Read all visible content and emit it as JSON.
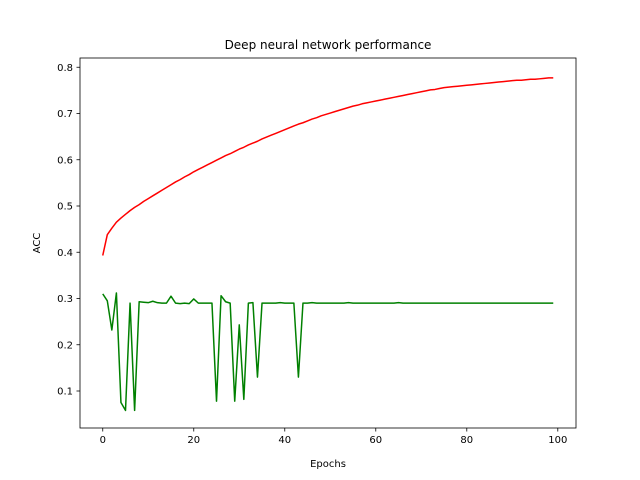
{
  "chart_data": {
    "type": "line",
    "title": "Deep neural network performance",
    "xlabel": "Epochs",
    "ylabel": "ACC",
    "xlim": [
      -5,
      104
    ],
    "ylim": [
      0.02,
      0.82
    ],
    "xticks": [
      0,
      20,
      40,
      60,
      80,
      100
    ],
    "yticks": [
      0.1,
      0.2,
      0.3,
      0.4,
      0.5,
      0.6,
      0.7,
      0.8
    ],
    "grid": false,
    "series": [
      {
        "color": "#ff0000",
        "x": [
          0,
          1,
          2,
          3,
          4,
          5,
          6,
          7,
          8,
          9,
          10,
          11,
          12,
          13,
          14,
          15,
          16,
          17,
          18,
          19,
          20,
          21,
          22,
          23,
          24,
          25,
          26,
          27,
          28,
          29,
          30,
          31,
          32,
          33,
          34,
          35,
          36,
          37,
          38,
          39,
          40,
          41,
          42,
          43,
          44,
          45,
          46,
          47,
          48,
          49,
          50,
          51,
          52,
          53,
          54,
          55,
          56,
          57,
          58,
          59,
          60,
          61,
          62,
          63,
          64,
          65,
          66,
          67,
          68,
          69,
          70,
          71,
          72,
          73,
          74,
          75,
          76,
          77,
          78,
          79,
          80,
          81,
          82,
          83,
          84,
          85,
          86,
          87,
          88,
          89,
          90,
          91,
          92,
          93,
          94,
          95,
          96,
          97,
          98,
          99
        ],
        "values": [
          0.393,
          0.438,
          0.452,
          0.465,
          0.474,
          0.482,
          0.49,
          0.497,
          0.503,
          0.51,
          0.516,
          0.522,
          0.528,
          0.534,
          0.54,
          0.546,
          0.552,
          0.557,
          0.563,
          0.568,
          0.574,
          0.579,
          0.584,
          0.589,
          0.594,
          0.599,
          0.604,
          0.609,
          0.613,
          0.618,
          0.623,
          0.627,
          0.632,
          0.636,
          0.64,
          0.645,
          0.649,
          0.653,
          0.657,
          0.661,
          0.665,
          0.669,
          0.673,
          0.677,
          0.68,
          0.684,
          0.688,
          0.691,
          0.695,
          0.698,
          0.701,
          0.704,
          0.707,
          0.71,
          0.713,
          0.716,
          0.718,
          0.721,
          0.723,
          0.725,
          0.727,
          0.729,
          0.731,
          0.733,
          0.735,
          0.737,
          0.739,
          0.741,
          0.743,
          0.745,
          0.747,
          0.749,
          0.751,
          0.752,
          0.754,
          0.756,
          0.757,
          0.758,
          0.759,
          0.76,
          0.761,
          0.762,
          0.763,
          0.764,
          0.765,
          0.766,
          0.767,
          0.768,
          0.769,
          0.77,
          0.771,
          0.772,
          0.772,
          0.773,
          0.774,
          0.774,
          0.775,
          0.776,
          0.777,
          0.777
        ]
      },
      {
        "color": "#008000",
        "x": [
          0,
          1,
          2,
          3,
          4,
          5,
          6,
          7,
          8,
          9,
          10,
          11,
          12,
          13,
          14,
          15,
          16,
          17,
          18,
          19,
          20,
          21,
          22,
          23,
          24,
          25,
          26,
          27,
          28,
          29,
          30,
          31,
          32,
          33,
          34,
          35,
          36,
          37,
          38,
          39,
          40,
          41,
          42,
          43,
          44,
          45,
          46,
          47,
          48,
          49,
          50,
          51,
          52,
          53,
          54,
          55,
          56,
          57,
          58,
          59,
          60,
          61,
          62,
          63,
          64,
          65,
          66,
          67,
          68,
          69,
          70,
          71,
          72,
          73,
          74,
          75,
          76,
          77,
          78,
          79,
          80,
          81,
          82,
          83,
          84,
          85,
          86,
          87,
          88,
          89,
          90,
          91,
          92,
          93,
          94,
          95,
          96,
          97,
          98,
          99
        ],
        "values": [
          0.31,
          0.295,
          0.232,
          0.312,
          0.075,
          0.058,
          0.29,
          0.058,
          0.293,
          0.292,
          0.291,
          0.294,
          0.291,
          0.29,
          0.29,
          0.305,
          0.29,
          0.289,
          0.29,
          0.289,
          0.299,
          0.29,
          0.29,
          0.29,
          0.29,
          0.078,
          0.306,
          0.293,
          0.29,
          0.078,
          0.243,
          0.082,
          0.29,
          0.291,
          0.13,
          0.29,
          0.29,
          0.29,
          0.29,
          0.291,
          0.29,
          0.29,
          0.29,
          0.13,
          0.29,
          0.29,
          0.291,
          0.29,
          0.29,
          0.29,
          0.29,
          0.29,
          0.29,
          0.29,
          0.291,
          0.29,
          0.29,
          0.29,
          0.29,
          0.29,
          0.29,
          0.29,
          0.29,
          0.29,
          0.29,
          0.291,
          0.29,
          0.29,
          0.29,
          0.29,
          0.29,
          0.29,
          0.29,
          0.29,
          0.29,
          0.29,
          0.29,
          0.29,
          0.29,
          0.29,
          0.29,
          0.29,
          0.29,
          0.29,
          0.29,
          0.29,
          0.29,
          0.29,
          0.29,
          0.29,
          0.29,
          0.29,
          0.29,
          0.29,
          0.29,
          0.29,
          0.29,
          0.29,
          0.29,
          0.29
        ]
      }
    ]
  }
}
